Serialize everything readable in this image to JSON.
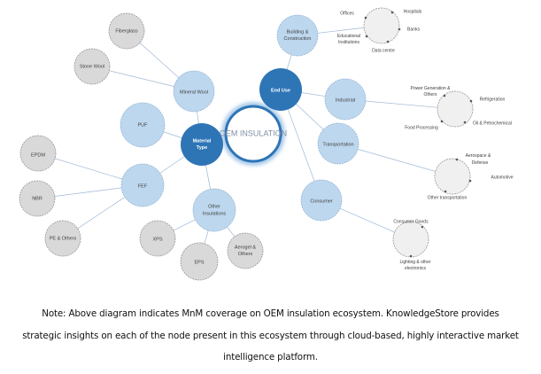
{
  "center": "OEM INSULATION",
  "material_type": {
    "label": [
      "Material",
      "Type"
    ],
    "mineral_wool": {
      "label": "Mineral Wool",
      "children": [
        "Fiberglass",
        "Stone Wool"
      ]
    },
    "puf": "PUF",
    "fef": {
      "label": "FEF",
      "children": [
        "EPDM",
        "NBR",
        "PE & Others"
      ]
    },
    "other": {
      "label": [
        "Other",
        "Insulations"
      ],
      "children": [
        "XPS",
        "EPS",
        [
          "Aerogel &",
          "Others"
        ]
      ]
    }
  },
  "end_use": {
    "label": "End Use",
    "building": {
      "label": [
        "Building &",
        "Construction"
      ],
      "subs": [
        "Offices",
        "Hospitals",
        "Banks",
        [
          "Educational",
          "Institutions"
        ],
        "Data centre"
      ]
    },
    "industrial": {
      "label": "Industrial",
      "subs": [
        [
          "Power Generation &",
          "Others"
        ],
        "Refrigeration",
        "Oil & Petrochemical",
        "Food Processing"
      ]
    },
    "transportation": {
      "label": "Transportation",
      "subs": [
        [
          "Aerospace &",
          "Defense"
        ],
        "Automotive",
        "Other transportation"
      ]
    },
    "consumer": {
      "label": "Consumer",
      "subs": [
        "Consumer Goods",
        [
          "Lighting & other",
          "electronics"
        ]
      ]
    }
  },
  "colors": {
    "primary": "#2e75b6",
    "secondary": "#bdd7ee",
    "leaf": "#d9d9d9"
  },
  "note": [
    "Note: Above diagram indicates MnM coverage on OEM insulation ecosystem. KnowledgeStore provides",
    "strategic insights on each of the node present in this ecosystem through cloud-based, highly interactive market",
    "intelligence platform."
  ]
}
